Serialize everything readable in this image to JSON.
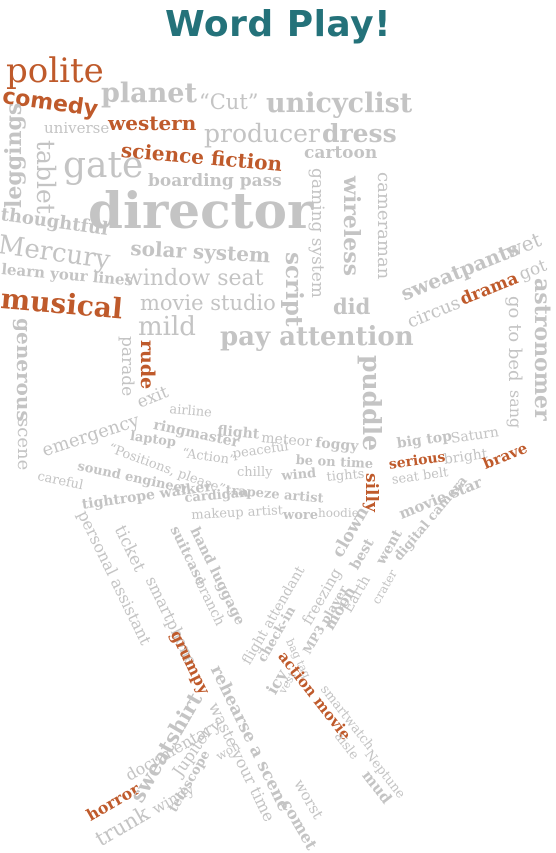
{
  "title": "Word Play!",
  "colors": {
    "title": "#24727a",
    "accent": "#bf5a2b",
    "light_gray": "#c4c4c4",
    "mid_gray": "#aaaaaa"
  },
  "words": {
    "polite": "polite",
    "planet": "planet",
    "cut": "“Cut”",
    "unicyclist": "unicyclist",
    "comedy": "comedy",
    "western": "western",
    "universe": "universe",
    "producer": "producer",
    "dress": "dress",
    "leggings": "leggings",
    "tablet": "tablet",
    "science_fiction": "science fiction",
    "cartoon": "cartoon",
    "gate": "gate",
    "boarding_pass": "boarding pass",
    "director": "director",
    "gaming_system": "gaming system",
    "wireless": "wireless",
    "cameraman": "cameraman",
    "thoughtful": "thoughtful",
    "solar_system": "solar system",
    "mercury": "Mercury",
    "window_seat": "window seat",
    "script": "script",
    "learn_your_lines": "learn your lines",
    "wet": "wet",
    "sweatpants": "sweatpants",
    "got": "got",
    "drama": "drama",
    "astronomer": "astronomer",
    "musical": "musical",
    "movie_studio": "movie studio",
    "did": "did",
    "circus": "circus",
    "go_to_bed": "go to bed",
    "sang": "sang",
    "mild": "mild",
    "pay_attention": "pay attention",
    "generous": "generous",
    "scene": "scene",
    "parade": "parade",
    "rude": "rude",
    "puddle": "puddle",
    "exit": "exit",
    "emergency": "emergency",
    "airline": "airline",
    "ringmaster": "ringmaster",
    "flight": "flight",
    "meteor": "meteor",
    "foggy": "foggy",
    "big_top": "big top",
    "saturn": "Saturn",
    "laptop": "laptop",
    "action_q": "“Action”",
    "peaceful": "peaceful",
    "be_on_time": "be on time",
    "serious": "serious",
    "bright": "bright",
    "brave": "brave",
    "positions_please": "“Positions, please”",
    "chilly": "chilly",
    "wind": "wind",
    "tights": "tights",
    "seat_belt": "seat belt",
    "sound_engineer": "sound engineer",
    "silly": "silly",
    "movie_star": "movie star",
    "careful": "careful",
    "trapeze_artist": "trapeze artist",
    "cardigan": "cardigan",
    "tightrope_walker": "tightrope walker",
    "makeup_artist": "makeup artist",
    "wore": "wore",
    "hoodie": "hoodie",
    "digital_camera": "digital camera",
    "personal_assistant": "personal assistant",
    "ticket": "ticket",
    "suitcase": "suitcase",
    "branch": "branch",
    "hand_luggage": "hand luggage",
    "clown": "clown",
    "best": "best",
    "went": "went",
    "smartphone": "smartphone",
    "flight_attendant": "flight attendant",
    "freezing": "freezing",
    "check_in": "check-in",
    "moon": "moon",
    "earth": "Earth",
    "crater": "crater",
    "mp3_player": "MP3 player",
    "grumpy": "grumpy",
    "bag_tag": "bag tag",
    "icy": "icy",
    "vest": "vest",
    "action_movie": "action movie",
    "smartwatch": "smartwatch",
    "documentary": "documentary",
    "horror": "horror",
    "sweatshirt": "sweatshirt",
    "trunk": "trunk",
    "rehearse_a_scene": "rehearse a scene",
    "jupiter": "Jupiter",
    "windy": "windy",
    "won": "won",
    "telescope": "telescope",
    "waste_your_time": "waste your time",
    "aisle": "aisle",
    "neptune": "Neptune",
    "mud": "mud",
    "worst": "worst",
    "comet": "comet"
  }
}
